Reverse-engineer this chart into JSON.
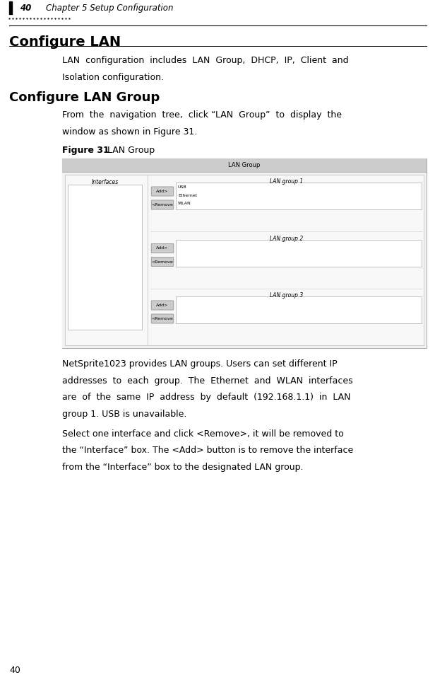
{
  "bg_color": "#ffffff",
  "page_width": 6.16,
  "page_height": 9.64,
  "header_number": "40",
  "header_text": "Chapter 5 Setup Configuration",
  "footer_number": "40",
  "title1": "Configure LAN",
  "para1_line1": "LAN  configuration  includes  LAN  Group,  DHCP,  IP,  Client  and",
  "para1_line2": "Isolation configuration.",
  "title2": "Configure LAN Group",
  "para2_line1": "From  the  navigation  tree,  click “LAN  Group”  to  display  the",
  "para2_line2": "window as shown in Figure 31.",
  "fig_label_bold": "Figure 31",
  "fig_label_normal": " LAN Group",
  "para3_line1": "NetSprite1023 provides LAN groups. Users can set different IP",
  "para3_line2": "addresses  to  each  group.  The  Ethernet  and  WLAN  interfaces",
  "para3_line3": "are  of  the  same  IP  address  by  default  (192.168.1.1)  in  LAN",
  "para3_line4": "group 1. USB is unavailable.",
  "para4_line1": "Select one interface and click <Remove>, it will be removed to",
  "para4_line2": "the “Interface” box. The <Add> button is to remove the interface",
  "para4_line3": "from the “Interface” box to the designated LAN group.",
  "lm": 0.13,
  "im": 0.88,
  "rm": 6.04
}
